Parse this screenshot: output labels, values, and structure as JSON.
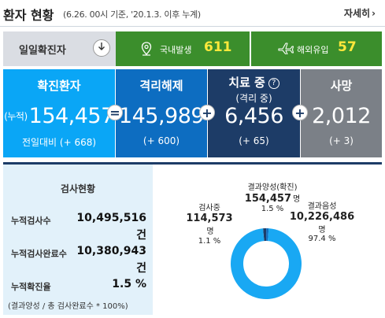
{
  "header": {
    "title": "환자 현황",
    "subtitle": "(6.26. 00시 기준, '20.1.3. 이후 누계)",
    "more_label": "자세히",
    "more_icon": "chevron-right-icon"
  },
  "daily": {
    "label": "일일확진자",
    "toggle_icon": "arrow-down-icon",
    "domestic": {
      "icon": "location-pin-icon",
      "label": "국내발생",
      "value": "611"
    },
    "overseas": {
      "icon": "airplane-icon",
      "label": "해외유입",
      "value": "57"
    },
    "colors": {
      "bar": "#3b8e2c",
      "number": "#ffe83b"
    }
  },
  "stats": {
    "confirmed": {
      "title": "확진환자",
      "prefix": "(누적)",
      "value": "154,457",
      "delta": "전일대비 (+ 668)",
      "color": "#0aa6f6"
    },
    "released": {
      "title": "격리해제",
      "value": "145,989",
      "delta": "(+ 600)",
      "color": "#0d6dc1"
    },
    "treating": {
      "title": "치료 중",
      "subtitle": "(격리 중)",
      "help_icon": "?",
      "value": "6,456",
      "delta": "(+ 65)",
      "color": "#1d3c67"
    },
    "deaths": {
      "title": "사망",
      "value": "2,012",
      "delta": "(+ 3)",
      "color": "#7b8087"
    },
    "operators": {
      "eq": "=",
      "plus1": "+",
      "plus2": "+"
    }
  },
  "tests": {
    "title": "검사현황",
    "rows": [
      {
        "label": "누적검사수",
        "value": "10,495,516",
        "unit": "건"
      },
      {
        "label": "누적검사완료수",
        "value": "10,380,943",
        "unit": "건"
      },
      {
        "label": "누적확진율",
        "value": "1.5 %"
      }
    ],
    "note": "(결과양성 / 총 검사완료수 * 100%)"
  },
  "chart_data": {
    "type": "pie",
    "categories": [
      "결과양성(확진)",
      "검사중",
      "결과음성"
    ],
    "values": [
      154457,
      114573,
      10226486
    ],
    "percents": [
      "1.5 %",
      "1.1 %",
      "97.4 %"
    ],
    "labels": [
      {
        "title": "결과양성(확진)",
        "value": "154,457",
        "unit": "명",
        "percent": "1.5 %"
      },
      {
        "title": "검사중",
        "value": "114,573",
        "unit": "명",
        "percent": "1.1 %"
      },
      {
        "title": "결과음성",
        "value": "10,226,486",
        "unit": "명",
        "percent": "97.4 %"
      }
    ],
    "colors": [
      "#1d3c67",
      "#0d6dc1",
      "#19a8f3"
    ]
  }
}
